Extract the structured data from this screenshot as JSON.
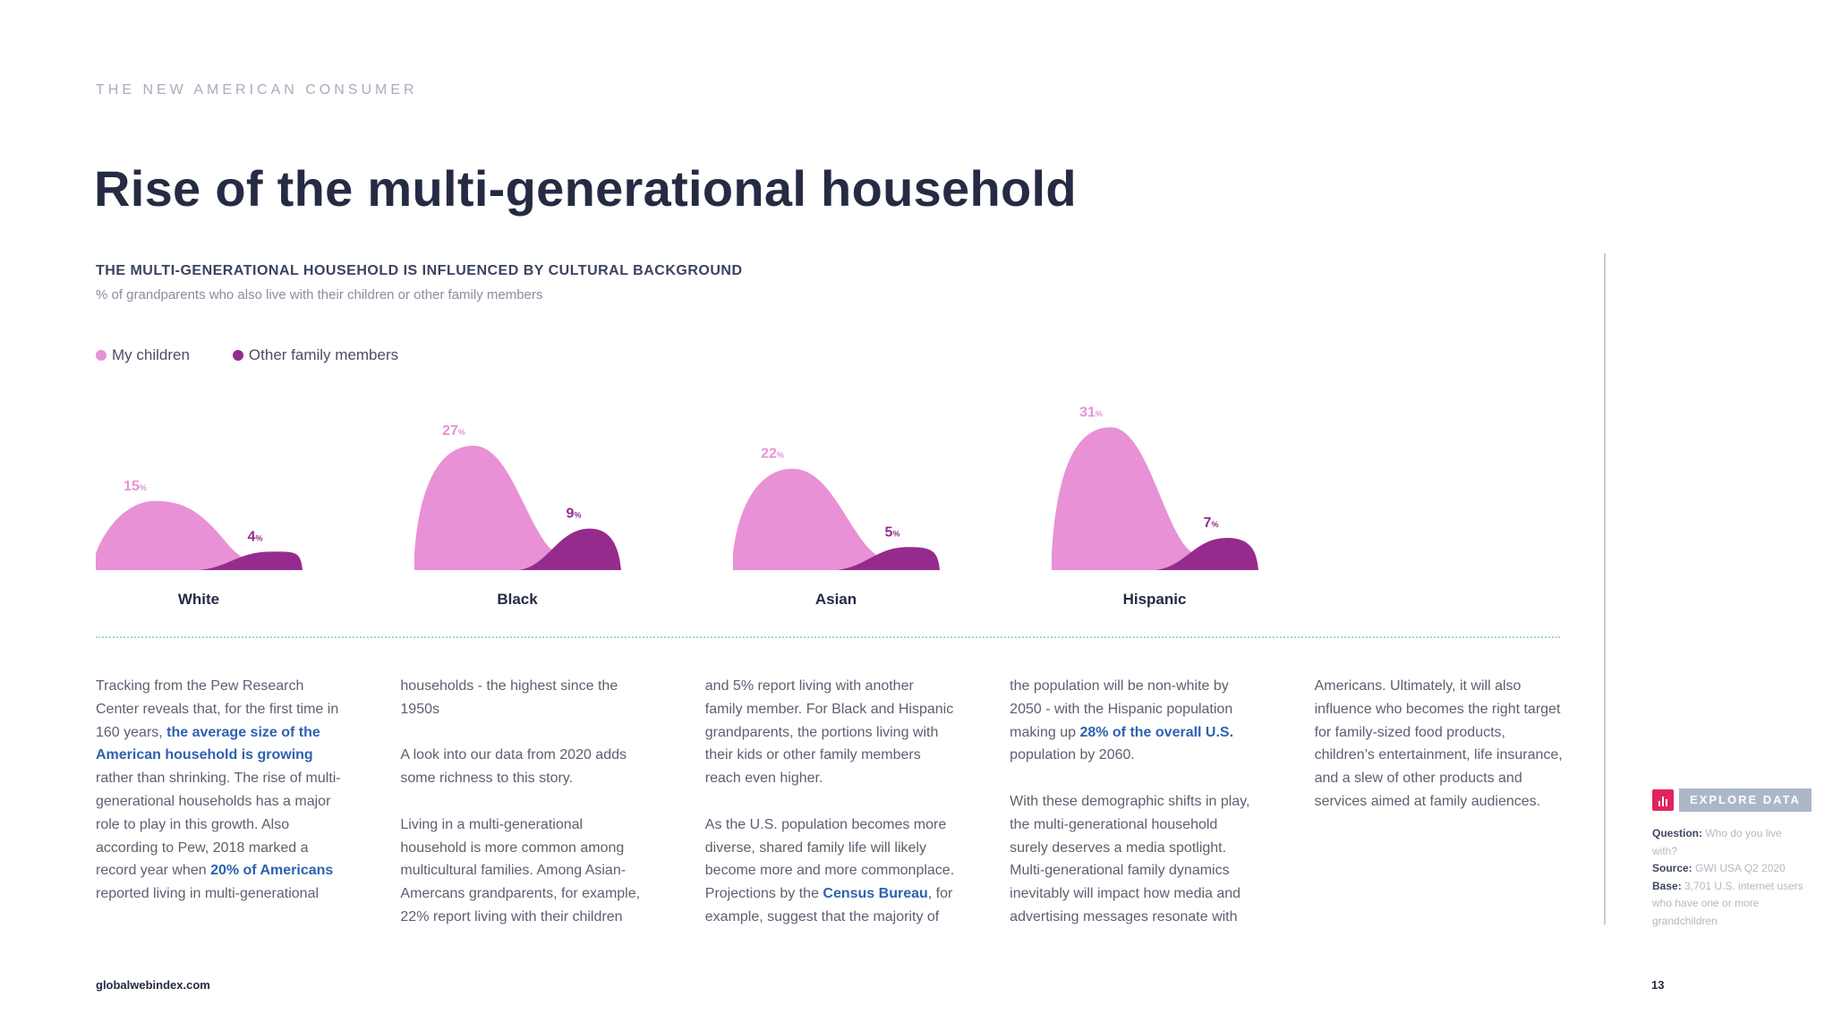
{
  "header": {
    "eyebrow": "THE NEW AMERICAN CONSUMER",
    "title": "Rise of the multi-generational household"
  },
  "chart_data": {
    "type": "area",
    "title": "THE MULTI-GENERATIONAL HOUSEHOLD IS INFLUENCED BY CULTURAL BACKGROUND",
    "subtitle": "% of grandparents who also live with their children or other family members",
    "categories": [
      "White",
      "Black",
      "Asian",
      "Hispanic"
    ],
    "series": [
      {
        "name": "My children",
        "color": "#e891d6",
        "values": [
          15,
          27,
          22,
          31
        ]
      },
      {
        "name": "Other family members",
        "color": "#962b8e",
        "values": [
          4,
          9,
          5,
          7
        ]
      }
    ],
    "value_suffix": "%",
    "legend": "top-left",
    "grid": false
  },
  "body": {
    "p1_a": "Tracking from the Pew Research Center reveals that, for the first time in 160 years, ",
    "p1_hl1": "the average size of the American household is growing",
    "p1_b": " rather than shrinking. The rise of multi-generational households has a major role to play in this growth. Also according to Pew, 2018 marked a record year when ",
    "p1_hl2": "20% of Americans",
    "p1_c": " reported living in multi-generational households - the highest since the 1950s",
    "p2": "A look into our data from 2020 adds some richness to this story.",
    "p3": "Living in a multi-generational household is more common among multicultural families. Among Asian-Amercans grandparents, for example, 22% report living with their children and 5% report living with another family member. For Black and Hispanic grandparents, the portions living with their kids or other family members reach even higher.",
    "p4_a": "As the U.S. population becomes more diverse, shared family life will likely become more and more commonplace. Projections by the ",
    "p4_hl1": "Census Bureau",
    "p4_b": ", for example, suggest that the majority of the population will be non-white by 2050 - with the Hispanic population making up ",
    "p4_hl2": "28% of the overall U.S.",
    "p4_c": " population by 2060.",
    "p5": "With these demographic shifts in play, the multi-generational household surely deserves a media spotlight. Multi-generational family dynamics inevitably will impact how media and advertising messages resonate with Americans. Ultimately, it will also influence who becomes the right target for family-sized food products, children’s entertainment, life insurance, and a slew of other products and services aimed at family audiences."
  },
  "sidebar": {
    "explore_label": "EXPLORE DATA",
    "question_label": "Question:",
    "question": " Who do you live with?",
    "source_label": "Source:",
    "source": " GWI USA Q2 2020",
    "base_label": "Base:",
    "base": " 3,701 U.S. internet users who have one or more grandchildren"
  },
  "footer": {
    "site": "globalwebindex.com",
    "page_number": "13"
  }
}
